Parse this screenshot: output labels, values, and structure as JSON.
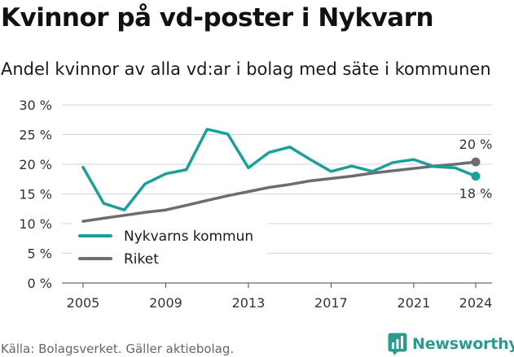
{
  "header": {
    "title": "Kvinnor på vd-poster i Nykvarn",
    "subtitle": "Andel kvinnor av alla vd:ar i bolag med säte i kommunen"
  },
  "footer": {
    "source": "Källa: Bolagsverket. Gäller aktiebolag.",
    "brand_name": "Newsworthy"
  },
  "colors": {
    "nykvarn": "#1ba099",
    "riket": "#6e6b72",
    "grid": "#d6d6d6",
    "brand": "#2b9a8f"
  },
  "icons": {
    "brand": "bar-chart-icon"
  },
  "chart_data": {
    "type": "line",
    "x": [
      2005,
      2006,
      2007,
      2008,
      2009,
      2010,
      2011,
      2012,
      2013,
      2014,
      2015,
      2016,
      2017,
      2018,
      2019,
      2020,
      2021,
      2022,
      2023,
      2024
    ],
    "series": [
      {
        "name": "Nykvarns kommun",
        "color": "#1ba099",
        "values": [
          19.5,
          13.4,
          12.3,
          16.7,
          18.4,
          19.1,
          25.9,
          25.1,
          19.4,
          22.0,
          22.9,
          20.8,
          18.8,
          19.7,
          18.8,
          20.3,
          20.8,
          19.6,
          19.4,
          18.0
        ],
        "end_label": "18 %"
      },
      {
        "name": "Riket",
        "color": "#6e6b72",
        "values": [
          10.4,
          10.9,
          11.4,
          11.9,
          12.3,
          13.1,
          13.9,
          14.7,
          15.4,
          16.1,
          16.6,
          17.2,
          17.6,
          18.0,
          18.5,
          18.9,
          19.3,
          19.7,
          20.0,
          20.4
        ],
        "end_label": "20 %"
      }
    ],
    "ylim": [
      0,
      30
    ],
    "yticks": [
      0,
      5,
      10,
      15,
      20,
      25,
      30
    ],
    "ytick_labels": [
      "0 %",
      "5 %",
      "10 %",
      "15 %",
      "20 %",
      "25 %",
      "30 %"
    ],
    "xtick_labels": [
      "2005",
      "2009",
      "2013",
      "2017",
      "2021",
      "2024"
    ],
    "grid": true,
    "legend_position": "bottom-left"
  }
}
